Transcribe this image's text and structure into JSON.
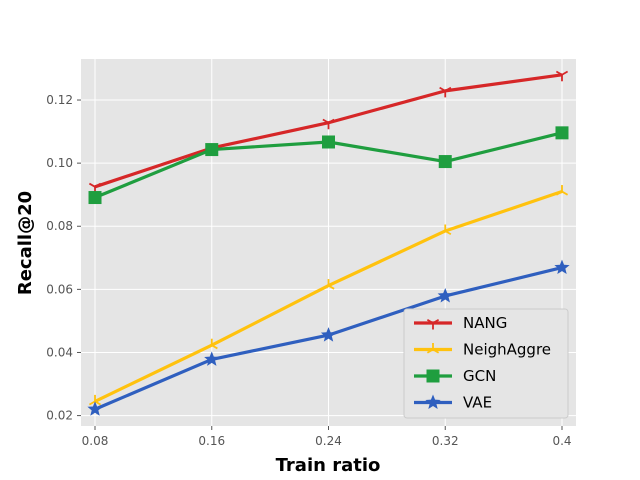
{
  "chart_data": {
    "type": "line",
    "title": "",
    "xlabel": "Train ratio",
    "ylabel": "Recall@20",
    "x": [
      0.08,
      0.16,
      0.24,
      0.32,
      0.4
    ],
    "x_tick_labels": [
      "0.08",
      "0.16",
      "0.24",
      "0.32",
      "0.4"
    ],
    "y_ticks": [
      0.02,
      0.04,
      0.06,
      0.08,
      0.1,
      0.12
    ],
    "y_tick_labels": [
      "0.02",
      "0.04",
      "0.06",
      "0.08",
      "0.10",
      "0.12"
    ],
    "xlim": [
      0.0704,
      0.4096
    ],
    "ylim": [
      0.0167,
      0.133
    ],
    "grid": true,
    "legend_position": "lower-right",
    "series": [
      {
        "name": "NANG",
        "color": "#d62728",
        "marker": "tri-down",
        "values": [
          0.0925,
          0.1048,
          0.1128,
          0.1229,
          0.128
        ]
      },
      {
        "name": "NeighAggre",
        "color": "#ffc20e",
        "marker": "tri-up",
        "values": [
          0.0245,
          0.0423,
          0.0612,
          0.0785,
          0.091
        ]
      },
      {
        "name": "GCN",
        "color": "#1f9e3f",
        "marker": "square",
        "values": [
          0.0891,
          0.1043,
          0.1067,
          0.1005,
          0.1096
        ]
      },
      {
        "name": "VAE",
        "color": "#2f5fbf",
        "marker": "star",
        "values": [
          0.022,
          0.0378,
          0.0455,
          0.0579,
          0.0669
        ]
      }
    ]
  }
}
